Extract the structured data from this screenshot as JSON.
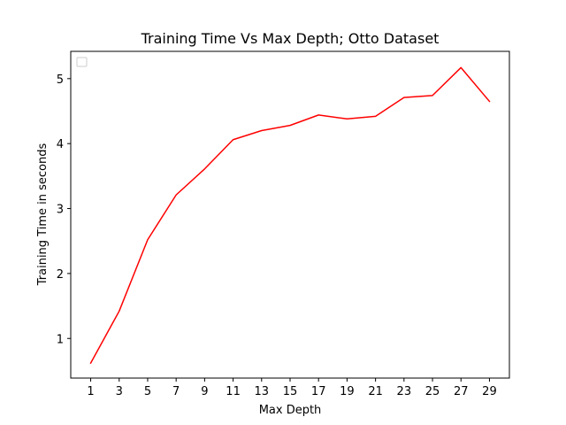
{
  "chart_data": {
    "type": "line",
    "title": "Training Time Vs Max Depth; Otto Dataset",
    "xlabel": "Max Depth",
    "ylabel": "Training Time in seconds",
    "x": [
      1,
      3,
      5,
      7,
      9,
      11,
      13,
      15,
      17,
      19,
      21,
      23,
      25,
      27,
      29
    ],
    "x_ticks": [
      "1",
      "3",
      "5",
      "7",
      "9",
      "11",
      "13",
      "15",
      "17",
      "19",
      "21",
      "23",
      "25",
      "27",
      "29"
    ],
    "y_ticks": [
      "1",
      "2",
      "3",
      "4",
      "5"
    ],
    "xlim": [
      -0.4,
      30.4
    ],
    "ylim": [
      0.39,
      5.42
    ],
    "grid": false,
    "legend": "top-left (empty)",
    "series": [
      {
        "color": "#ff0000",
        "values": [
          0.62,
          1.42,
          2.52,
          3.21,
          3.61,
          4.06,
          4.2,
          4.28,
          4.44,
          4.38,
          4.42,
          4.71,
          4.74,
          5.17,
          4.65
        ]
      }
    ]
  }
}
